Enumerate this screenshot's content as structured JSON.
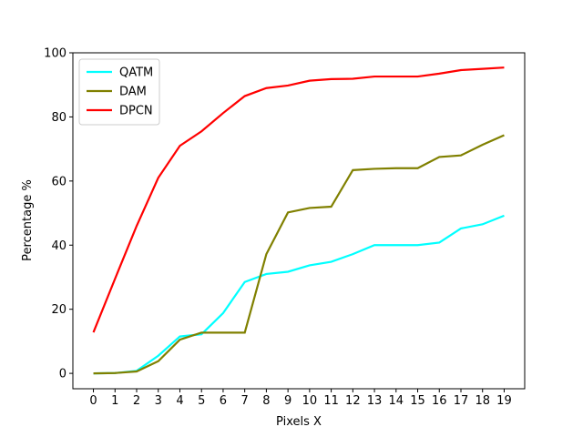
{
  "chart_data": {
    "type": "line",
    "x_label": "Pixels X",
    "y_label": "Percentage %",
    "x": [
      0,
      1,
      2,
      3,
      4,
      5,
      6,
      7,
      8,
      9,
      10,
      11,
      12,
      13,
      14,
      15,
      16,
      17,
      18,
      19
    ],
    "series": [
      {
        "name": "QATM",
        "color": "#00ffff",
        "values": [
          0,
          0.1,
          0.8,
          5.5,
          11.5,
          12.2,
          18.8,
          28.5,
          31,
          31.7,
          33.7,
          34.8,
          37.2,
          40,
          40,
          40,
          40.8,
          45.2,
          46.5,
          49.2
        ]
      },
      {
        "name": "DAM",
        "color": "#808000",
        "values": [
          0,
          0.1,
          0.6,
          3.8,
          10.5,
          12.7,
          12.7,
          12.7,
          37.2,
          50.2,
          51.6,
          52,
          63.4,
          63.8,
          64,
          64,
          67.5,
          68,
          71.3,
          74.3
        ]
      },
      {
        "name": "DPCN",
        "color": "#ff0000",
        "values": [
          12.8,
          29.5,
          46,
          61,
          71,
          75.5,
          81.2,
          86.5,
          89,
          89.8,
          91.3,
          91.8,
          91.9,
          92.6,
          92.6,
          92.6,
          93.5,
          94.6,
          95,
          95.4
        ]
      }
    ],
    "xlim": [
      -0.95,
      19.95
    ],
    "xticks": [
      0,
      1,
      2,
      3,
      4,
      5,
      6,
      7,
      8,
      9,
      10,
      11,
      12,
      13,
      14,
      15,
      16,
      17,
      18,
      19
    ],
    "ylim": [
      -4.8,
      100
    ],
    "yticks": [
      0,
      20,
      40,
      60,
      80,
      100
    ],
    "legend": "upper left"
  }
}
